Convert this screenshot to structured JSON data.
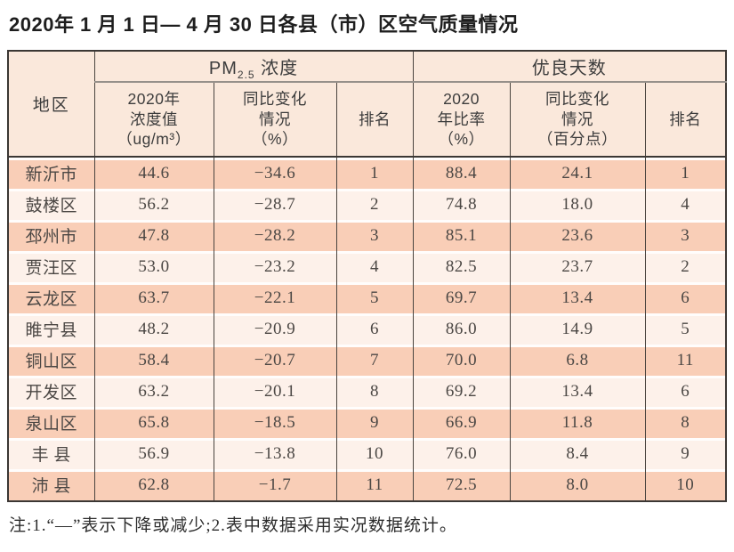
{
  "title": "2020年 1 月 1 日— 4 月 30 日各县（市）区空气质量情况",
  "table": {
    "region_header": "地区",
    "pm_prefix": "PM",
    "pm_sub": "2.5",
    "pm_label": " 浓度",
    "days_group": "优良天数",
    "sub_headers": [
      "2020年\n浓度值\n（ug/m³）",
      "同比变化\n情况\n（%）",
      "排名",
      "2020\n年比率\n（%）",
      "同比变化\n情况\n（百分点）",
      "排名"
    ],
    "row_fields": [
      "region",
      "pm_value",
      "pm_change",
      "pm_rank",
      "days_rate",
      "days_change",
      "days_rank"
    ],
    "rows": [
      {
        "region": "新沂市",
        "pm_value": "44.6",
        "pm_change": "−34.6",
        "pm_rank": "1",
        "days_rate": "88.4",
        "days_change": "24.1",
        "days_rank": "1"
      },
      {
        "region": "鼓楼区",
        "pm_value": "56.2",
        "pm_change": "−28.7",
        "pm_rank": "2",
        "days_rate": "74.8",
        "days_change": "18.0",
        "days_rank": "4"
      },
      {
        "region": "邳州市",
        "pm_value": "47.8",
        "pm_change": "−28.2",
        "pm_rank": "3",
        "days_rate": "85.1",
        "days_change": "23.6",
        "days_rank": "3"
      },
      {
        "region": "贾汪区",
        "pm_value": "53.0",
        "pm_change": "−23.2",
        "pm_rank": "4",
        "days_rate": "82.5",
        "days_change": "23.7",
        "days_rank": "2"
      },
      {
        "region": "云龙区",
        "pm_value": "63.7",
        "pm_change": "−22.1",
        "pm_rank": "5",
        "days_rate": "69.7",
        "days_change": "13.4",
        "days_rank": "6"
      },
      {
        "region": "睢宁县",
        "pm_value": "48.2",
        "pm_change": "−20.9",
        "pm_rank": "6",
        "days_rate": "86.0",
        "days_change": "14.9",
        "days_rank": "5"
      },
      {
        "region": "铜山区",
        "pm_value": "58.4",
        "pm_change": "−20.7",
        "pm_rank": "7",
        "days_rate": "70.0",
        "days_change": "6.8",
        "days_rank": "11"
      },
      {
        "region": "开发区",
        "pm_value": "63.2",
        "pm_change": "−20.1",
        "pm_rank": "8",
        "days_rate": "69.2",
        "days_change": "13.4",
        "days_rank": "6"
      },
      {
        "region": "泉山区",
        "pm_value": "65.8",
        "pm_change": "−18.5",
        "pm_rank": "9",
        "days_rate": "66.9",
        "days_change": "11.8",
        "days_rank": "8"
      },
      {
        "region": "丰 县",
        "pm_value": "56.9",
        "pm_change": "−13.8",
        "pm_rank": "10",
        "days_rate": "76.0",
        "days_change": "8.4",
        "days_rank": "9"
      },
      {
        "region": "沛 县",
        "pm_value": "62.8",
        "pm_change": "−1.7",
        "pm_rank": "11",
        "days_rate": "72.5",
        "days_change": "8.0",
        "days_rank": "10"
      }
    ]
  },
  "note": "注:1.“—”表示下降或减少;2.表中数据采用实况数据统计。"
}
